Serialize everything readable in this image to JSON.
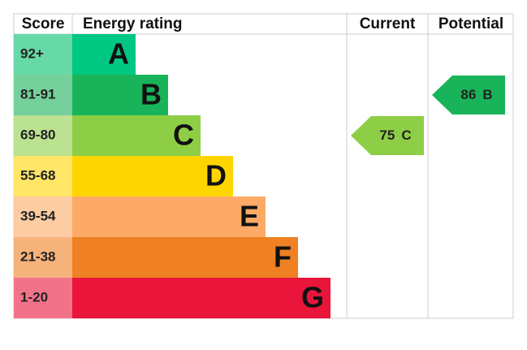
{
  "header": {
    "score": "Score",
    "rating": "Energy rating",
    "current": "Current",
    "potential": "Potential"
  },
  "bands": [
    {
      "score": "92+",
      "letter": "A",
      "color": "#00c781",
      "score_color": "#66d9a7"
    },
    {
      "score": "81-91",
      "letter": "B",
      "color": "#19b459",
      "score_color": "#75d09b"
    },
    {
      "score": "69-80",
      "letter": "C",
      "color": "#8dce46",
      "score_color": "#bbe290"
    },
    {
      "score": "55-68",
      "letter": "D",
      "color": "#ffd500",
      "score_color": "#ffe666"
    },
    {
      "score": "39-54",
      "letter": "E",
      "color": "#fcaa65",
      "score_color": "#fdcca3"
    },
    {
      "score": "21-38",
      "letter": "F",
      "color": "#ef8023",
      "score_color": "#f5b37b"
    },
    {
      "score": "1-20",
      "letter": "G",
      "color": "#e9153b",
      "score_color": "#f27389"
    }
  ],
  "current": {
    "value": 75,
    "letter": "C"
  },
  "potential": {
    "value": 86,
    "letter": "B"
  }
}
